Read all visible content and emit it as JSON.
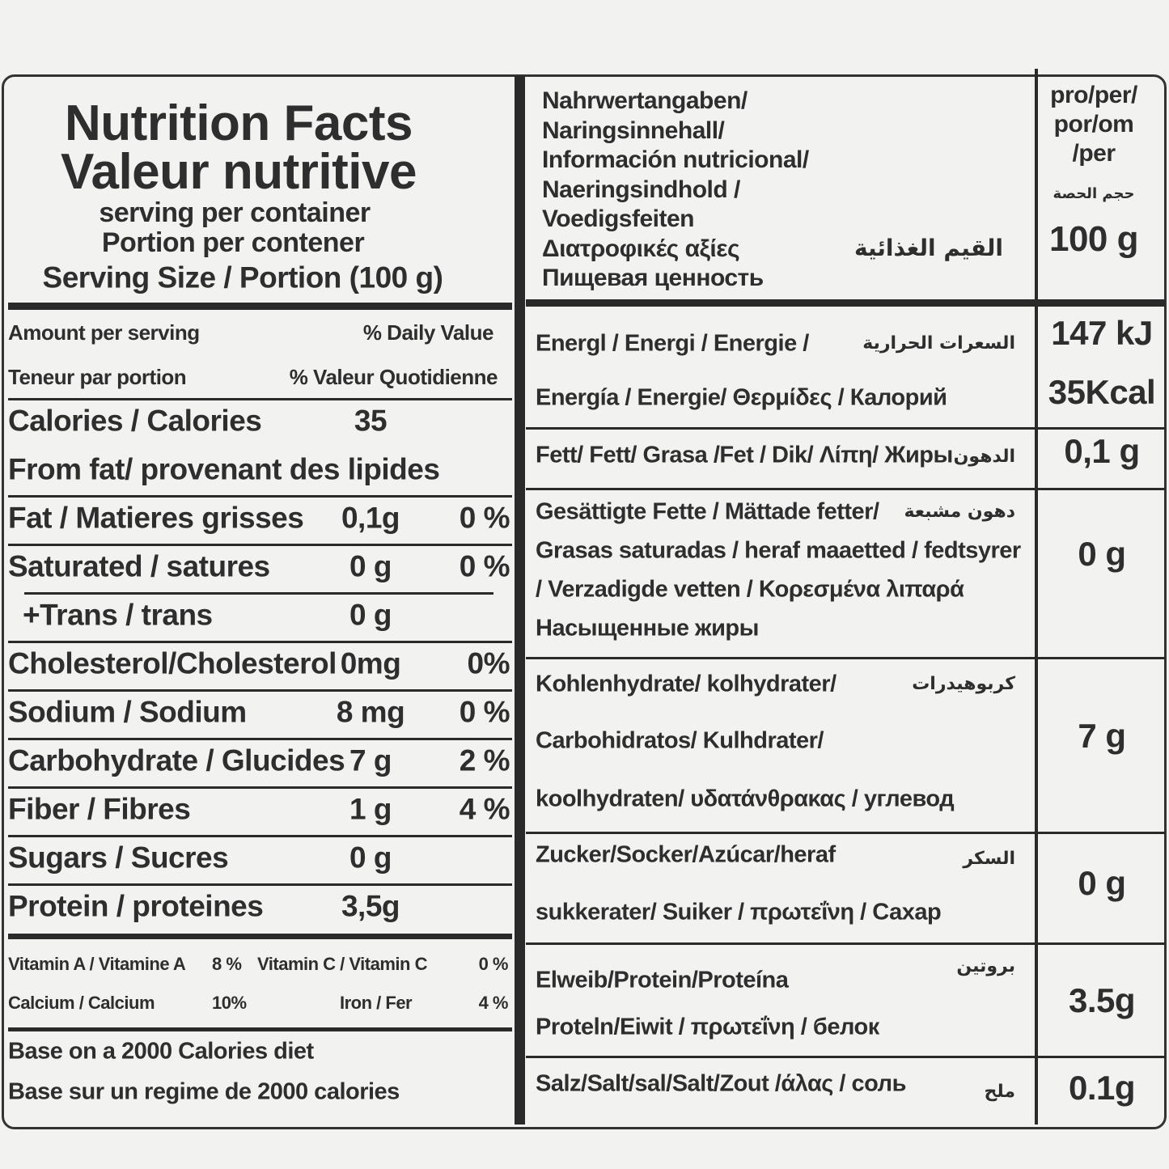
{
  "left": {
    "title": [
      "Nutrition Facts",
      "Valeur nutritive"
    ],
    "subtitle": [
      "serving per container",
      "Portion per contener",
      "Serving Size / Portion (100 g)"
    ],
    "header": [
      [
        "Amount per serving",
        "% Daily Value"
      ],
      [
        "Teneur par portion",
        "% Valeur Quotidienne"
      ]
    ],
    "rows": [
      {
        "label": "Calories / Calories",
        "amount": "35"
      },
      {
        "label": "From fat/ provenant des lipides"
      },
      {
        "label": "Fat / Matieres grisses",
        "amount": "0,1g",
        "dv": "0 %"
      },
      {
        "label": "Saturated / satures",
        "amount": "0 g",
        "dv": "0 %"
      },
      {
        "label": "+Trans / trans",
        "amount": "0 g"
      },
      {
        "label": "Cholesterol/Cholesterol",
        "amount": "0mg",
        "dv": "0%"
      },
      {
        "label": "Sodium / Sodium",
        "amount": "8 mg",
        "dv": "0 %"
      },
      {
        "label": "Carbohydrate / Glucides",
        "amount": "7 g",
        "dv": "2 %"
      },
      {
        "label": "Fiber / Fibres",
        "amount": "1 g",
        "dv": "4 %"
      },
      {
        "label": "Sugars / Sucres",
        "amount": "0 g"
      },
      {
        "label": "Protein / proteines",
        "amount": "3,5g"
      }
    ],
    "vitamins": [
      [
        "Vitamin A / Vitamine A",
        "8 %",
        "Vitamin C / Vitamin C",
        "0 %"
      ],
      [
        "Calcium / Calcium",
        "10%",
        "Iron / Fer",
        "4 %"
      ]
    ],
    "footer": [
      "Base on a 2000 Calories diet",
      "Base sur un regime de 2000 calories"
    ]
  },
  "right": {
    "heading": [
      "Nahrwertangaben/",
      "Naringsinnehall/",
      "Información nutricional/",
      "Naeringsindhold /",
      "Voedigsfeiten",
      "Διατροφικές αξίες",
      "Пищевая ценность"
    ],
    "heading_ar": "القيم الغذائية",
    "per": [
      "pro/per/",
      "por/om",
      "/per"
    ],
    "per_ar": "حجم الحصة",
    "per_value": "100 g",
    "rows": [
      {
        "lines": [
          "Energl / Energi / Energie /",
          "Energía / Energie/ Θερμίδες / Калорий"
        ],
        "ar": "السعرات الحرارية",
        "values": [
          "147 kJ",
          "35Kcal"
        ]
      },
      {
        "lines": [
          "Fett/ Fett/ Grasa /Fet / Dik/ Λίπη/ Жиры"
        ],
        "ar": "الدهون",
        "values": [
          "0,1 g"
        ]
      },
      {
        "lines": [
          "Gesättigte Fette / Mättade fetter/",
          "Grasas saturadas / heraf maaetted / fedtsyrer",
          "/ Verzadigde vetten / Κορεσμένα λιπαρά",
          "Насыщенные жиры"
        ],
        "ar": "دهون مشبعة",
        "values": [
          "0 g"
        ]
      },
      {
        "lines": [
          "Kohlenhydrate/ kolhydrater/",
          "Carbohidratos/ Kulhdrater/",
          "koolhydraten/ υδατάνθρακας / углевод"
        ],
        "ar": "كربوهيدرات",
        "values": [
          "7 g"
        ]
      },
      {
        "lines": [
          "Zucker/Socker/Azúcar/heraf",
          "sukkerater/ Suiker / πρωτεΐνη / Сахар"
        ],
        "ar": "السكر",
        "values": [
          "0 g"
        ]
      },
      {
        "lines": [
          "Elweib/Protein/Proteína",
          "Proteln/Eiwit / πρωτεΐνη / белок"
        ],
        "ar": "بروتين",
        "values": [
          "3.5g"
        ]
      },
      {
        "lines": [
          "Salz/Salt/sal/Salt/Zout /άλας / соль"
        ],
        "ar": "ملح",
        "values": [
          "0.1g"
        ]
      }
    ]
  }
}
